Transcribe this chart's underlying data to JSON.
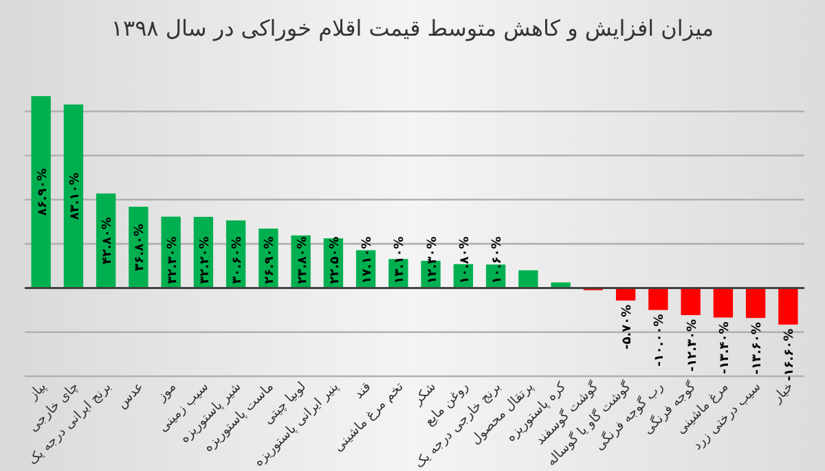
{
  "chart_data": {
    "type": "bar",
    "title": "میزان افزایش و کاهش متوسط قیمت اقلام خوراکی در  سال ۱۳۹۸",
    "categories": [
      "پیاز",
      "چای خارجی",
      "برنج ایرانی درجه یک",
      "عدس",
      "موز",
      "سیب زمینی",
      "شیر پاستوریزه",
      "ماست پاستوریزه",
      "لوبیا چیتی",
      "پنیر ایرانی پاستوریزه",
      "قند",
      "تخم مرغ ماشینی",
      "شکر",
      "روغن مایع",
      "برنج خارجی درجه یک",
      "پرتقال محصول",
      "کره پاستوریزه",
      "گوشت گوسفند",
      "گوشت گاو یا گوساله",
      "رب گوجه فرنگی",
      "گوجه فرنگی",
      "مرغ ماشینی",
      "سیب درختی زرد",
      "خیار"
    ],
    "values": [
      86.9,
      83.1,
      42.8,
      36.8,
      32.3,
      32.2,
      30.6,
      26.9,
      23.8,
      22.5,
      17.1,
      13.1,
      12.3,
      10.8,
      10.6,
      8,
      2.5,
      -1,
      -5.7,
      -10,
      -12.3,
      -13.4,
      -13.6,
      -16.6
    ],
    "value_labels": [
      "۸۶.۹۰%",
      "۸۳.۱۰%",
      "۴۲.۸۰%",
      "۳۶.۸۰%",
      "۳۲.۳۰%",
      "۳۲.۲۰%",
      "۳۰.۶۰%",
      "۲۶.۹۰%",
      "۲۳.۸۰%",
      "۲۲.۵۰%",
      "۱۷.۱۰%",
      "۱۳.۱۰%",
      "۱۲.۳۰%",
      "۱۰.۸۰%",
      "۱۰.۶۰%",
      null,
      null,
      null,
      "-۵.۷۰%",
      "-۱۰.۰۰%",
      "-۱۲.۳۰%",
      "-۱۳.۴۰%",
      "-۱۳.۶۰%",
      "-۱۶.۶۰%"
    ],
    "colors": [
      "#00b050",
      "#00b050",
      "#00b050",
      "#00b050",
      "#00b050",
      "#00b050",
      "#00b050",
      "#00b050",
      "#00b050",
      "#00b050",
      "#00b050",
      "#00b050",
      "#00b050",
      "#00b050",
      "#00b050",
      "#00b050",
      "#00b050",
      "#ff0000",
      "#ff0000",
      "#ff0000",
      "#ff0000",
      "#ff0000",
      "#ff0000",
      "#ff0000"
    ],
    "yticks": [
      {
        "value": -40,
        "label": null
      },
      {
        "value": -20,
        "label": null
      },
      {
        "value": 0,
        "label": null
      },
      {
        "value": 20,
        "label": null
      },
      {
        "value": 40,
        "label": null
      },
      {
        "value": 60,
        "label": null
      },
      {
        "value": 80,
        "label": null
      }
    ],
    "grid": "y"
  }
}
